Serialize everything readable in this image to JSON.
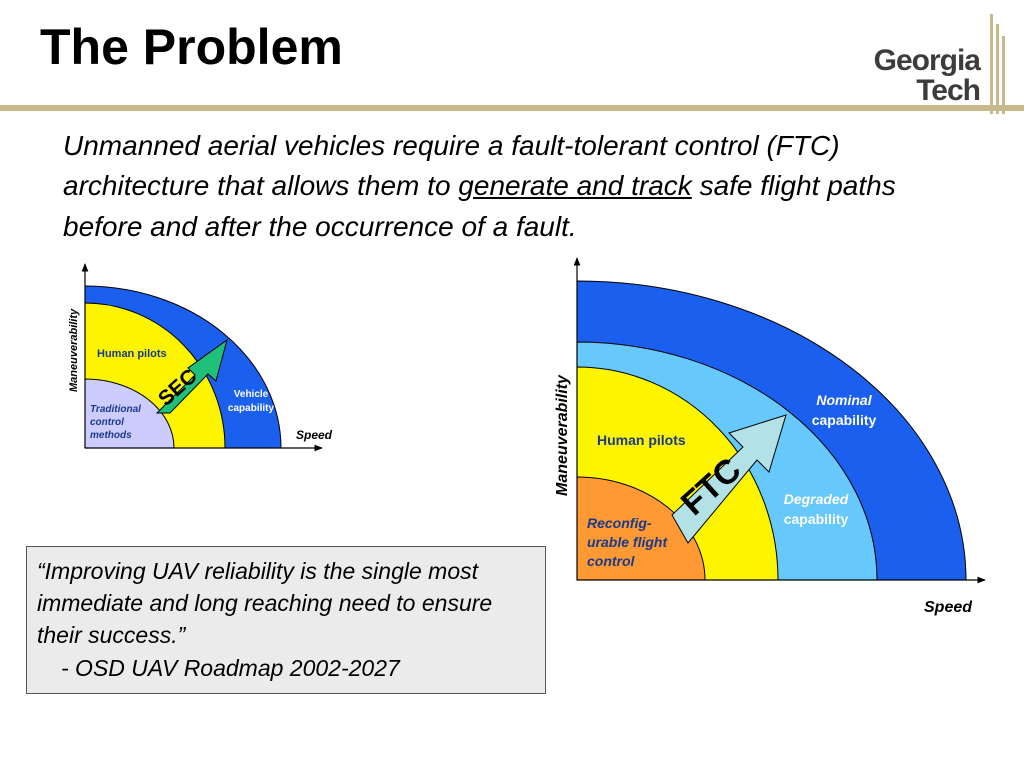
{
  "slide": {
    "title": "The Problem",
    "logo": {
      "line1": "Georgia",
      "line2": "Tech"
    },
    "intro": {
      "before": "Unmanned aerial vehicles require a fault-tolerant control (FTC) architecture that allows them to ",
      "underlined": "generate and track",
      "after": " safe flight paths before and after the occurrence of a fault."
    },
    "quote": {
      "text": "“Improving UAV reliability is the single most immediate and long reaching need to ensure their success.”",
      "source": "-  OSD UAV Roadmap 2002-2027"
    }
  },
  "diagram_small": {
    "y_axis": "Maneuverability",
    "x_axis": "Speed",
    "regions": {
      "traditional": [
        "Traditional",
        "control",
        "methods"
      ],
      "human": "Human pilots",
      "vehicle": [
        "Vehicle",
        "capability"
      ]
    },
    "arrow": "SEC"
  },
  "diagram_large": {
    "y_axis": "Maneuverability",
    "x_axis": "Speed",
    "regions": {
      "reconfig": [
        "Reconfig-",
        "urable flight",
        "control"
      ],
      "human": "Human pilots",
      "degraded": [
        "Degraded",
        "capability"
      ],
      "nominal": [
        "Nominal",
        "capability"
      ]
    },
    "arrow": "FTC"
  },
  "colors": {
    "nominal_blue": "#1a5fee",
    "degraded_blue": "#66c8fb",
    "human_yellow": "#fdf400",
    "traditional_lavender": "#ccccff",
    "reconfig_orange": "#ff9933",
    "sec_arrow": "#1fc07a",
    "ftc_arrow": "#b3e2e6",
    "rule": "#c7b98b"
  }
}
